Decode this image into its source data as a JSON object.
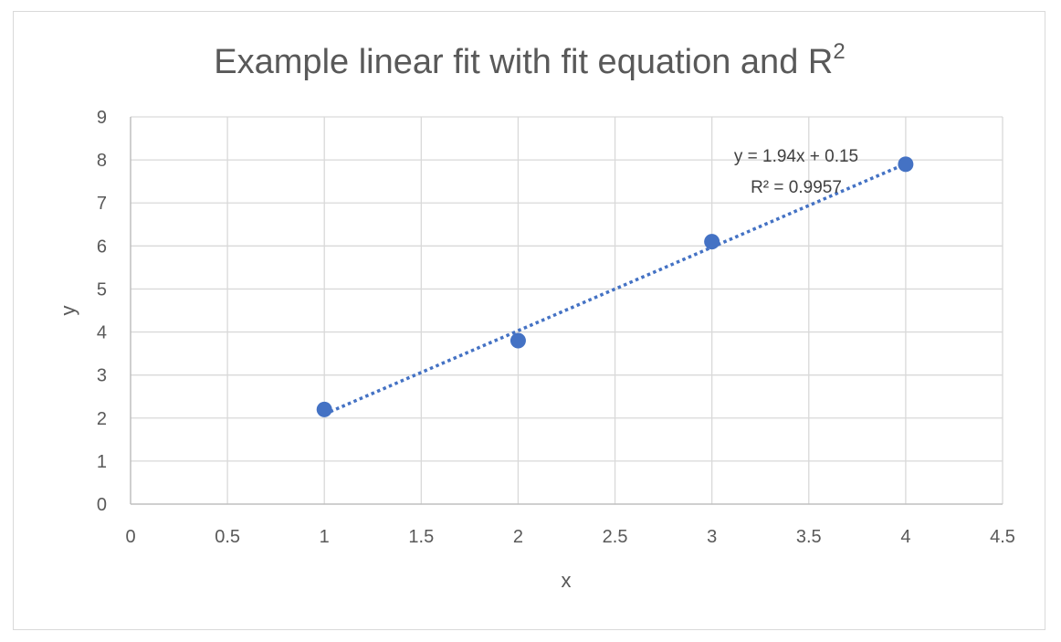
{
  "chart_data": {
    "type": "scatter",
    "title": "Example linear fit with fit equation and R",
    "title_superscript": "2",
    "xlabel": "x",
    "ylabel": "y",
    "xlim": [
      0,
      4.5
    ],
    "ylim": [
      0,
      9
    ],
    "x_ticks": [
      "0",
      "0.5",
      "1",
      "1.5",
      "2",
      "2.5",
      "3",
      "3.5",
      "4",
      "4.5"
    ],
    "y_ticks": [
      "0",
      "1",
      "2",
      "3",
      "4",
      "5",
      "6",
      "7",
      "8",
      "9"
    ],
    "grid": true,
    "legend": "none",
    "series": [
      {
        "x": [
          1,
          2,
          3,
          4
        ],
        "y": [
          2.2,
          3.8,
          6.1,
          7.9
        ],
        "color": "#4472c4"
      }
    ],
    "trendline": {
      "kind": "linear",
      "slope": 1.94,
      "intercept": 0.15,
      "style": "dotted",
      "color": "#4472c4",
      "equation_label": "y = 1.94x + 0.15",
      "r2_label": "R² = 0.9957"
    }
  }
}
